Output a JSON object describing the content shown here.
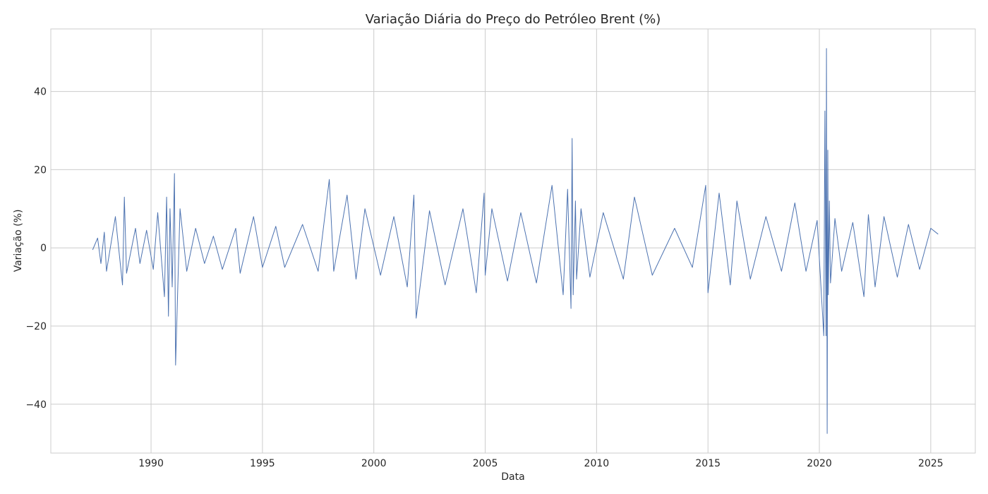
{
  "chart_data": {
    "type": "line",
    "title": "Variação Diária do Preço do Petróleo Brent (%)",
    "xlabel": "Data",
    "ylabel": "Variação (%)",
    "xlim": [
      1985.5,
      2027.0
    ],
    "ylim": [
      -52.5,
      56.0
    ],
    "x_ticks": [
      1990,
      1995,
      2000,
      2005,
      2010,
      2015,
      2020,
      2025
    ],
    "x_tick_labels": [
      "1990",
      "1995",
      "2000",
      "2005",
      "2010",
      "2015",
      "2020",
      "2025"
    ],
    "y_ticks": [
      -40,
      -20,
      0,
      20,
      40
    ],
    "y_tick_labels": [
      "−40",
      "−20",
      "0",
      "20",
      "40"
    ],
    "grid": true,
    "series_color": "#4c72b0",
    "series": [
      {
        "x": [
          1987.38,
          1987.6,
          1987.75,
          1987.9,
          1988.0,
          1988.4,
          1988.72,
          1988.8,
          1988.9,
          1989.3,
          1989.5,
          1989.8,
          1990.1,
          1990.3,
          1990.6,
          1990.7,
          1990.78,
          1990.85,
          1990.95,
          1991.05,
          1991.1,
          1991.3,
          1991.6,
          1992.0,
          1992.4,
          1992.8,
          1993.2,
          1993.8,
          1994.0,
          1994.6,
          1995.0,
          1995.6,
          1996.0,
          1996.8,
          1997.5,
          1998.0,
          1998.2,
          1998.8,
          1999.2,
          1999.6,
          2000.3,
          2000.9,
          2001.5,
          2001.8,
          2001.9,
          2002.5,
          2003.2,
          2004.0,
          2004.6,
          2004.95,
          2005.0,
          2005.3,
          2006.0,
          2006.6,
          2007.3,
          2008.0,
          2008.5,
          2008.7,
          2008.85,
          2008.9,
          2008.95,
          2009.05,
          2009.1,
          2009.3,
          2009.7,
          2010.3,
          2011.2,
          2011.7,
          2012.5,
          2013.5,
          2014.3,
          2014.9,
          2015.0,
          2015.5,
          2016.0,
          2016.3,
          2016.9,
          2017.6,
          2018.3,
          2018.9,
          2019.4,
          2019.9,
          2020.2,
          2020.25,
          2020.3,
          2020.32,
          2020.35,
          2020.38,
          2020.4,
          2020.45,
          2020.5,
          2020.7,
          2021.0,
          2021.5,
          2022.0,
          2022.2,
          2022.5,
          2022.9,
          2023.5,
          2024.0,
          2024.5,
          2025.0,
          2025.33
        ],
        "values": [
          -0.5,
          2.5,
          -4.0,
          4.0,
          -6.0,
          8.0,
          -9.5,
          13.0,
          -6.5,
          5.0,
          -4.0,
          4.5,
          -5.5,
          9.0,
          -12.5,
          13.0,
          -17.5,
          10.0,
          -10.0,
          19.0,
          -30.0,
          10.0,
          -6.0,
          5.0,
          -4.0,
          3.0,
          -5.5,
          5.0,
          -6.5,
          8.0,
          -5.0,
          5.5,
          -5.0,
          6.0,
          -6.0,
          17.5,
          -6.0,
          13.5,
          -8.0,
          10.0,
          -7.0,
          8.0,
          -10.0,
          13.5,
          -18.0,
          9.5,
          -9.5,
          10.0,
          -11.5,
          14.0,
          -7.0,
          10.0,
          -8.5,
          9.0,
          -9.0,
          16.0,
          -12.0,
          15.0,
          -15.5,
          28.0,
          -12.0,
          12.0,
          -8.0,
          10.0,
          -7.5,
          9.0,
          -8.0,
          13.0,
          -7.0,
          5.0,
          -5.0,
          16.0,
          -11.5,
          14.0,
          -9.5,
          12.0,
          -8.0,
          8.0,
          -6.0,
          11.5,
          -6.0,
          7.0,
          -22.5,
          35.0,
          -22.5,
          51.0,
          -47.5,
          25.0,
          -12.0,
          12.0,
          -9.0,
          7.5,
          -6.0,
          6.5,
          -12.5,
          8.5,
          -10.0,
          8.0,
          -7.5,
          6.0,
          -5.5,
          5.0,
          3.5
        ]
      }
    ]
  }
}
